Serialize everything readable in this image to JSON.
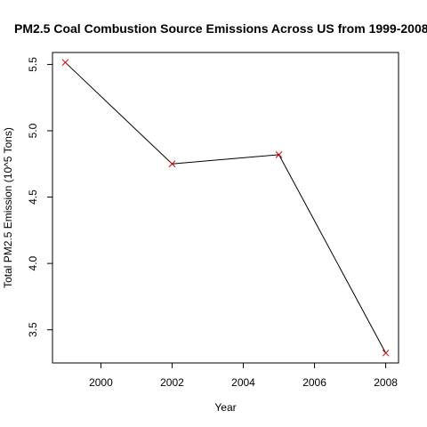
{
  "chart_data": {
    "type": "line",
    "title": "PM2.5 Coal Combustion Source Emissions Across US from 1999-2008",
    "xlabel": "Year",
    "ylabel": "Total PM2.5 Emission (10^5 Tons)",
    "x": [
      1999,
      2002,
      2005,
      2008
    ],
    "y": [
      5.515,
      4.75,
      4.82,
      3.325
    ],
    "xticks": [
      2000,
      2002,
      2004,
      2006,
      2008
    ],
    "yticks": [
      3.5,
      4.0,
      4.5,
      5.0,
      5.5
    ],
    "xtick_labels": [
      "2000",
      "2002",
      "2004",
      "2006",
      "2008"
    ],
    "ytick_labels": [
      "3.5",
      "4.0",
      "4.5",
      "5.0",
      "5.5"
    ],
    "xlim": [
      1998.64,
      2008.36
    ],
    "ylim": [
      3.25,
      5.59
    ],
    "grid": false,
    "point_marker": "x",
    "colors": {
      "line": "#000000",
      "points": "#cc0000",
      "axes": "#000000"
    }
  }
}
